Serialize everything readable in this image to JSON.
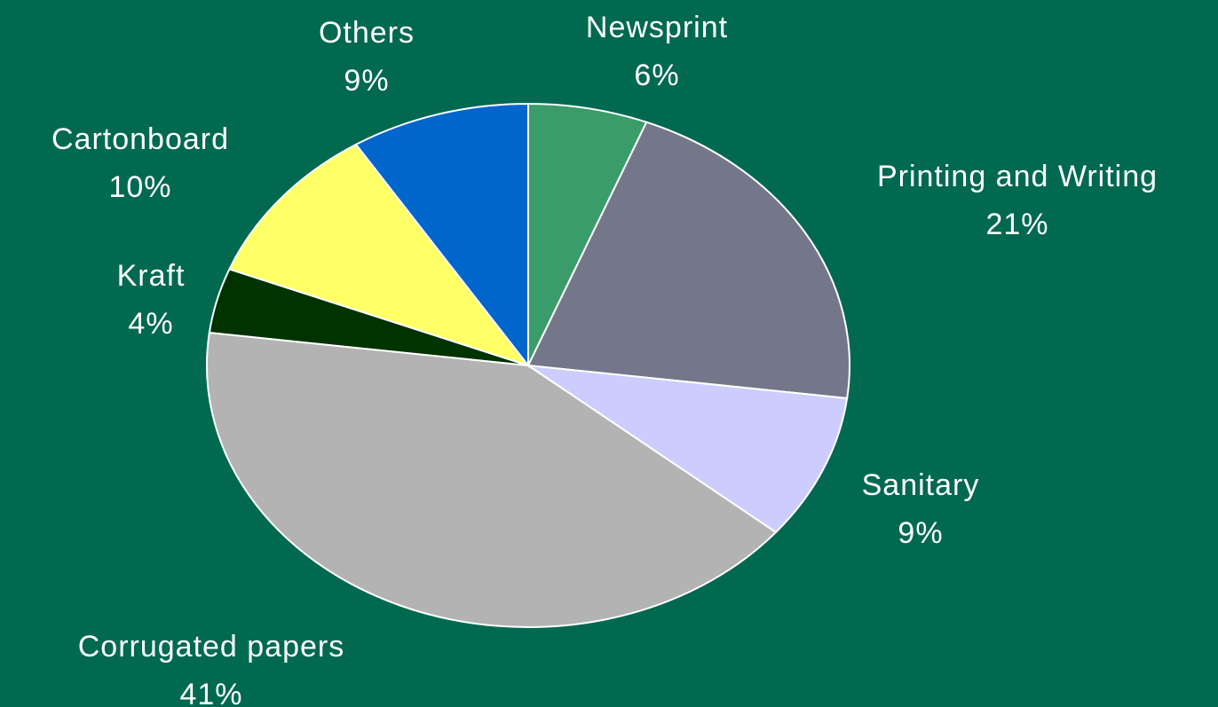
{
  "chart_data": {
    "type": "pie",
    "start_angle_deg": 0,
    "direction": "clockwise",
    "slices": [
      {
        "label": "Newsprint",
        "value": 6,
        "value_label": "6%",
        "color": "#3a9c6a"
      },
      {
        "label": "Printing and Writing",
        "value": 21,
        "value_label": "21%",
        "color": "#737789"
      },
      {
        "label": "Sanitary",
        "value": 9,
        "value_label": "9%",
        "color": "#cccdfd"
      },
      {
        "label": "Corrugated papers",
        "value": 41,
        "value_label": "41%",
        "color": "#b3b3b3"
      },
      {
        "label": "Kraft",
        "value": 4,
        "value_label": "4%",
        "color": "#003300"
      },
      {
        "label": "Cartonboard",
        "value": 10,
        "value_label": "10%",
        "color": "#ffff66"
      },
      {
        "label": "Others",
        "value": 9,
        "value_label": "9%",
        "color": "#0066cc"
      }
    ]
  },
  "colors": {
    "background": "#006950",
    "label_text": "#ffffff",
    "slice_border": "#ffffff"
  }
}
